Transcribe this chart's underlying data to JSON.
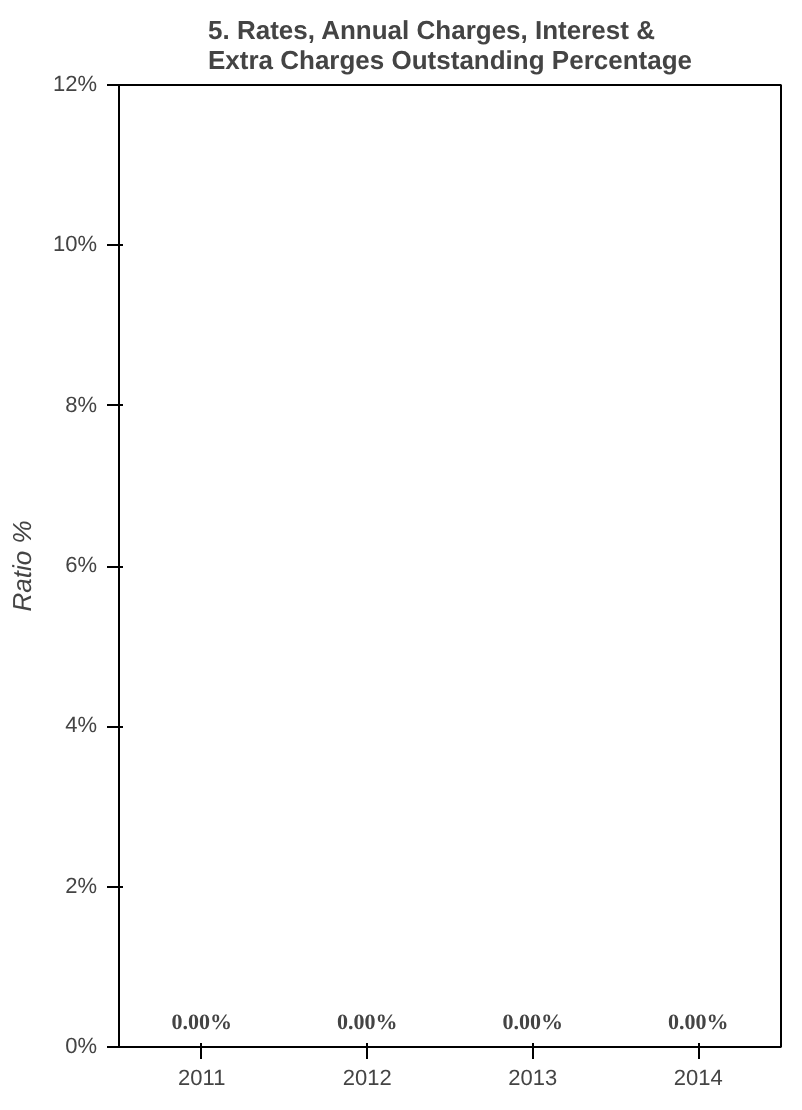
{
  "chart_data": {
    "type": "bar",
    "title": "5. Rates, Annual Charges, Interest & Extra Charges Outstanding Percentage",
    "ylabel": "Ratio %",
    "categories": [
      "2011",
      "2012",
      "2013",
      "2014"
    ],
    "values": [
      0,
      0,
      0,
      0
    ],
    "value_labels": [
      "0.00%",
      "0.00%",
      "0.00%",
      "0.00%"
    ],
    "ylim": [
      0,
      12
    ],
    "yticks": [
      {
        "value": 0,
        "label": "0%"
      },
      {
        "value": 2,
        "label": "2%"
      },
      {
        "value": 4,
        "label": "4%"
      },
      {
        "value": 6,
        "label": "6%"
      },
      {
        "value": 8,
        "label": "8%"
      },
      {
        "value": 10,
        "label": "10%"
      },
      {
        "value": 12,
        "label": "12%"
      }
    ]
  }
}
